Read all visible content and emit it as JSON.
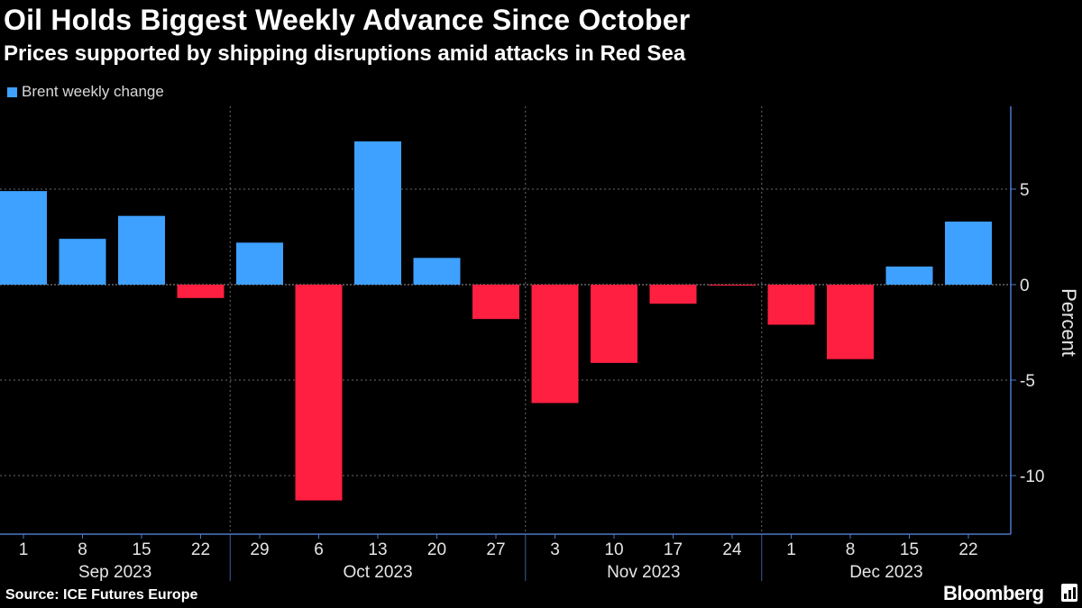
{
  "chart_data": {
    "type": "bar",
    "title": "Oil Holds Biggest Weekly Advance Since October",
    "subtitle": "Prices supported by shipping disruptions amid attacks in Red Sea",
    "ylabel": "Percent",
    "ylim": [
      -12.5,
      9
    ],
    "yticks": [
      5,
      0,
      -5,
      -10
    ],
    "grid": true,
    "legend_position": "top-left",
    "colors": {
      "positive": "#3ea0ff",
      "negative": "#ff1f40",
      "axis": "#4a78c8",
      "grid": "#6a6a6a"
    },
    "series": [
      {
        "name": "Brent weekly change",
        "values": [
          4.9,
          2.4,
          3.6,
          -0.7,
          2.2,
          -11.3,
          7.5,
          1.4,
          -1.8,
          -6.2,
          -4.1,
          -1.0,
          -0.05,
          -2.1,
          -3.9,
          0.95,
          3.3
        ]
      }
    ],
    "categories": [
      "1",
      "8",
      "15",
      "22",
      "29",
      "6",
      "13",
      "20",
      "27",
      "3",
      "10",
      "17",
      "24",
      "1",
      "8",
      "15",
      "22"
    ],
    "months": [
      {
        "label": "Sep 2023",
        "first": 0,
        "last": 3
      },
      {
        "label": "Oct 2023",
        "first": 4,
        "last": 8
      },
      {
        "label": "Nov 2023",
        "first": 9,
        "last": 12
      },
      {
        "label": "Dec 2023",
        "first": 13,
        "last": 16
      }
    ],
    "source": "Source: ICE Futures Europe"
  },
  "brand": "Bloomberg"
}
